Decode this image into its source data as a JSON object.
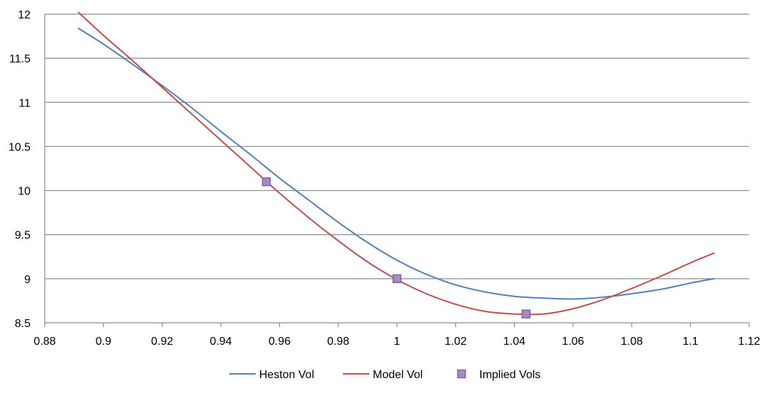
{
  "chart_data": {
    "type": "line",
    "title": "",
    "xlabel": "",
    "ylabel": "",
    "xlim": [
      0.88,
      1.12
    ],
    "ylim": [
      8.5,
      12
    ],
    "x_ticks": [
      0.88,
      0.9,
      0.92,
      0.94,
      0.96,
      0.98,
      1,
      1.02,
      1.04,
      1.06,
      1.08,
      1.1,
      1.12
    ],
    "x_tick_labels": [
      "0.88",
      "0.9",
      "0.92",
      "0.94",
      "0.96",
      "0.98",
      "1",
      "1.02",
      "1.04",
      "1.06",
      "1.08",
      "1.1",
      "1.12"
    ],
    "y_ticks": [
      8.5,
      9,
      9.5,
      10,
      10.5,
      11,
      11.5,
      12
    ],
    "y_tick_labels": [
      "8.5",
      "9",
      "9.5",
      "10",
      "10.5",
      "11",
      "11.5",
      "12"
    ],
    "grid": "horizontal",
    "legend_position": "bottom",
    "series": [
      {
        "name": "Heston Vol",
        "kind": "line",
        "color": "#4f81bd",
        "x": [
          0.8915,
          0.9,
          0.91,
          0.92,
          0.93,
          0.94,
          0.95,
          0.96,
          0.97,
          0.98,
          0.99,
          1.0,
          1.01,
          1.02,
          1.03,
          1.04,
          1.05,
          1.06,
          1.07,
          1.08,
          1.09,
          1.1,
          1.108
        ],
        "y": [
          11.84,
          11.66,
          11.43,
          11.19,
          10.94,
          10.67,
          10.41,
          10.14,
          9.89,
          9.64,
          9.41,
          9.21,
          9.05,
          8.93,
          8.85,
          8.8,
          8.78,
          8.77,
          8.79,
          8.83,
          8.88,
          8.95,
          9.0
        ]
      },
      {
        "name": "Model Vol",
        "kind": "line",
        "color": "#c0504d",
        "x": [
          0.8915,
          0.9,
          0.91,
          0.92,
          0.93,
          0.94,
          0.95,
          0.96,
          0.97,
          0.98,
          0.99,
          1.0,
          1.01,
          1.02,
          1.03,
          1.04,
          1.05,
          1.06,
          1.07,
          1.08,
          1.09,
          1.1,
          1.108
        ],
        "y": [
          12.02,
          11.76,
          11.47,
          11.17,
          10.87,
          10.57,
          10.27,
          9.97,
          9.69,
          9.43,
          9.19,
          8.99,
          8.83,
          8.71,
          8.63,
          8.6,
          8.6,
          8.66,
          8.76,
          8.89,
          9.03,
          9.18,
          9.29
        ]
      },
      {
        "name": "Implied Vols",
        "kind": "scatter",
        "color": "#8064a2",
        "x": [
          0.9555,
          1.0,
          1.044
        ],
        "y": [
          10.1,
          9.0,
          8.6
        ]
      }
    ]
  }
}
